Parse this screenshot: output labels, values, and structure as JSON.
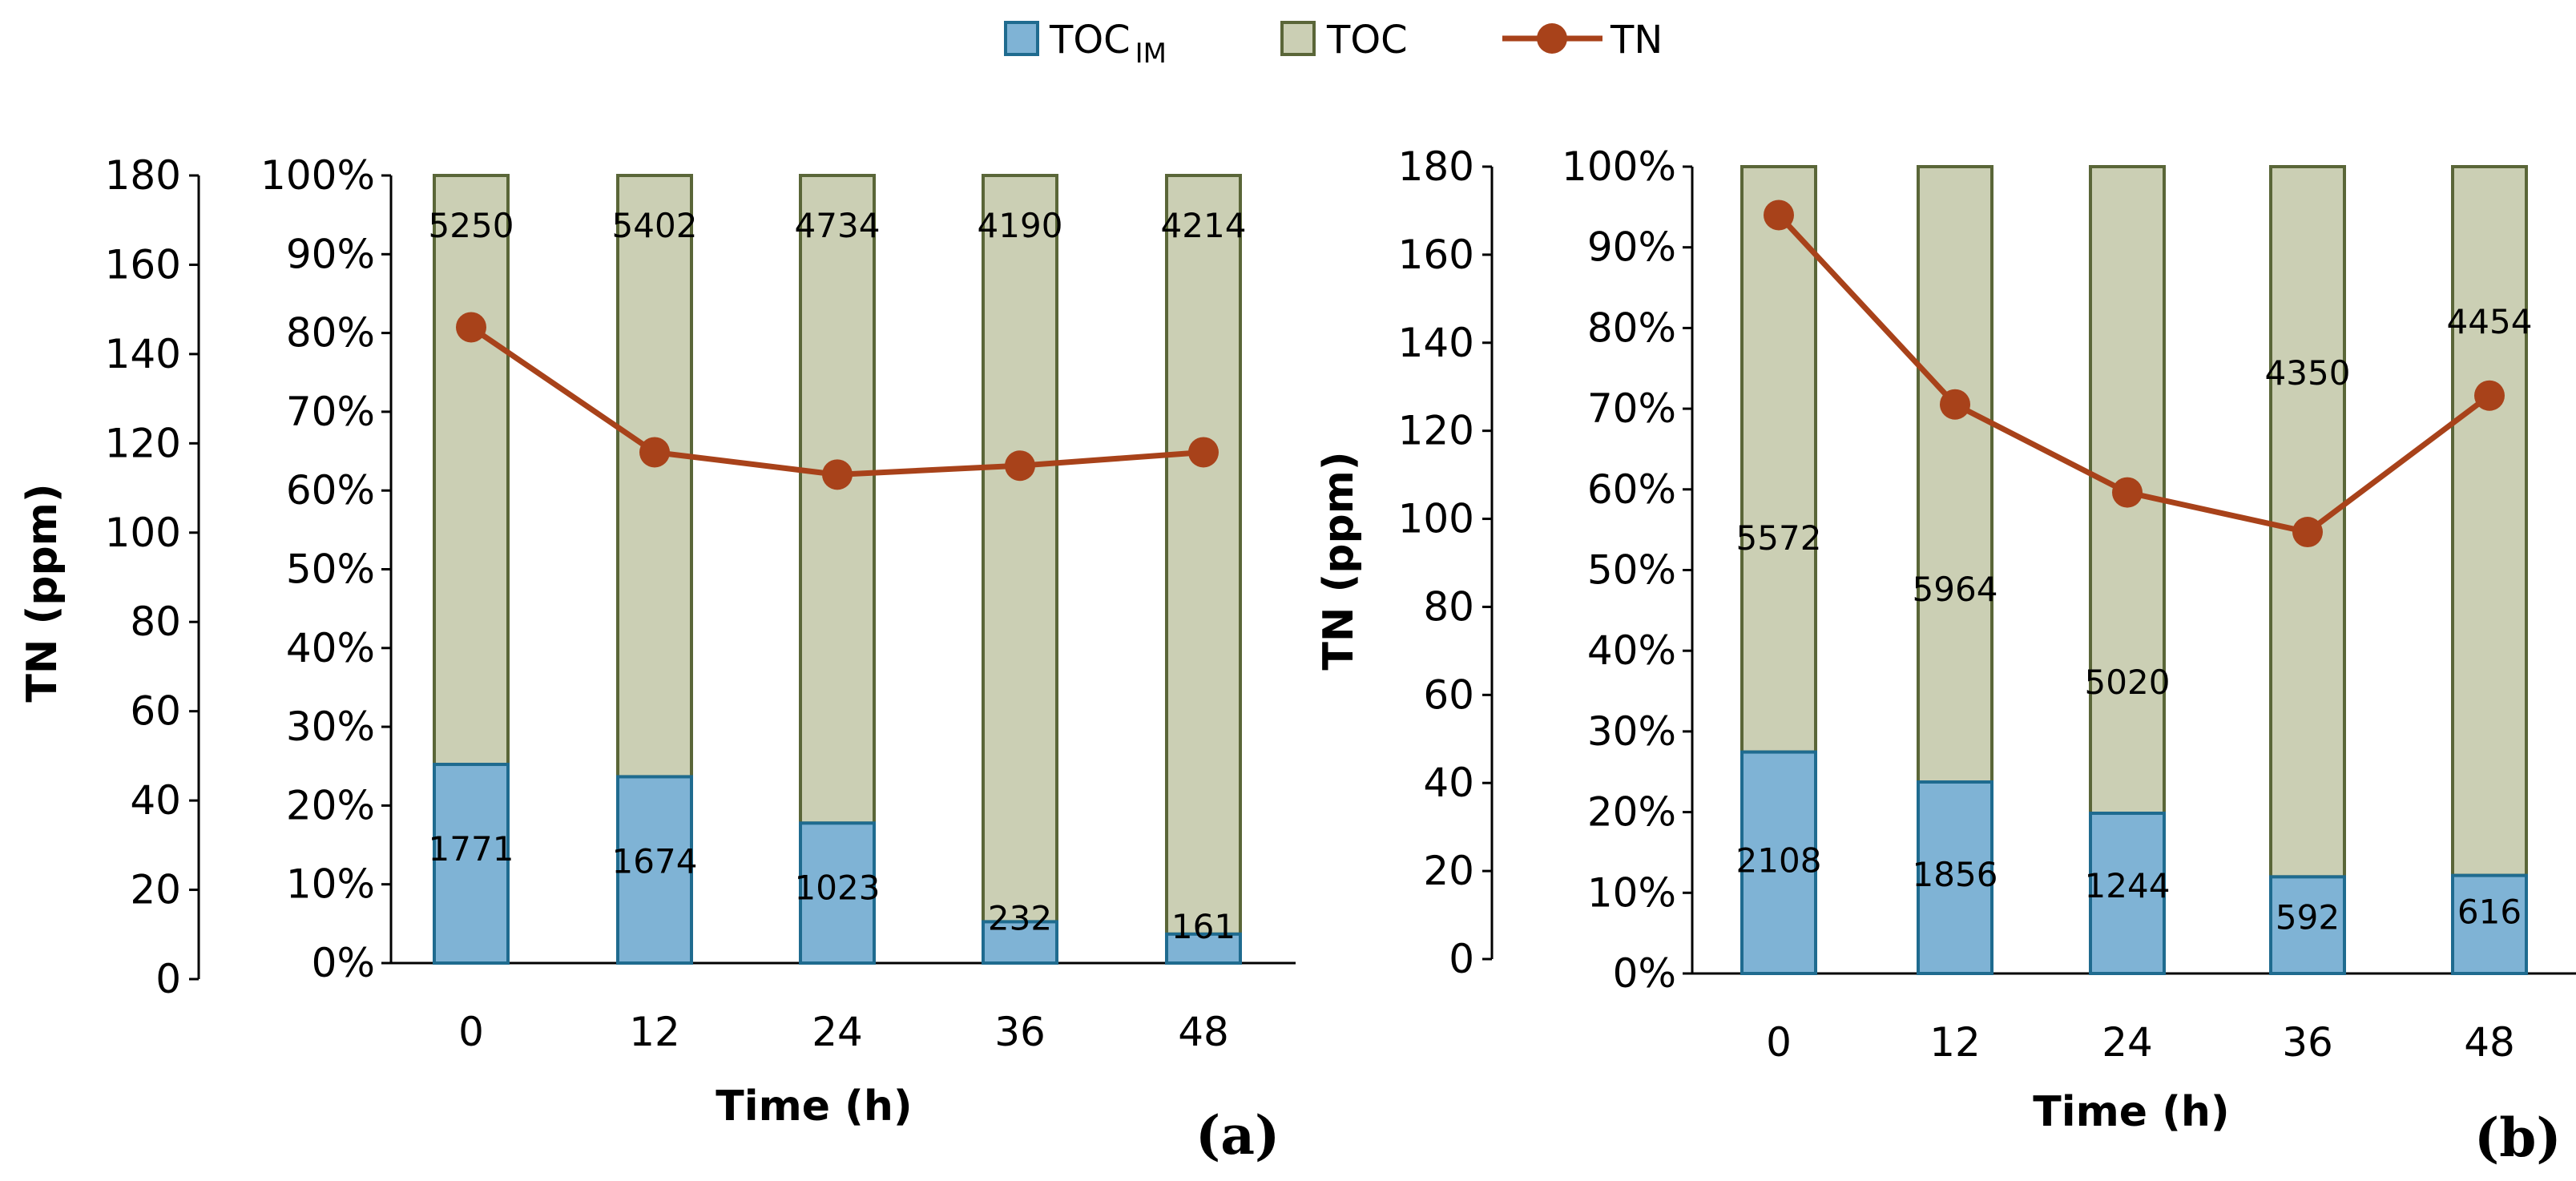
{
  "legend": {
    "toc_im": {
      "label": "TOC",
      "subscript": "IM"
    },
    "toc": {
      "label": "TOC"
    },
    "tn": {
      "label": "TN"
    }
  },
  "colors": {
    "toc_im_fill": "#7fb3d5",
    "toc_im_stroke": "#1f6b8f",
    "toc_fill": "#cbcfb4",
    "toc_stroke": "#5a6638",
    "tn_line": "#a8421a",
    "axis": "#000000"
  },
  "chart_data": [
    {
      "type": "bar",
      "panel_label": "(a)",
      "stacked": "percent",
      "categories": [
        "0",
        "12",
        "24",
        "36",
        "48"
      ],
      "series": [
        {
          "name": "TOC IM",
          "values": [
            1771,
            1674,
            1023,
            232,
            161
          ]
        },
        {
          "name": "TOC",
          "values": [
            5250,
            5402,
            4734,
            4190,
            4214
          ]
        },
        {
          "name": "TN",
          "type": "line",
          "axis": "left",
          "values": [
            146,
            118,
            113,
            115,
            118
          ]
        }
      ],
      "data_labels": {
        "toc_im": [
          "1771",
          "1674",
          "1023",
          "232",
          "161"
        ],
        "toc": [
          "5250",
          "5402",
          "4734",
          "4190",
          "4214"
        ]
      },
      "xlabel": "Time (h)",
      "ylabel_left": "TN (ppm)",
      "ylim_left": [
        0,
        180
      ],
      "yticks_left": [
        "0",
        "20",
        "40",
        "60",
        "80",
        "100",
        "120",
        "140",
        "160",
        "180"
      ],
      "ylim_right": [
        0,
        100
      ],
      "yticks_right": [
        "0%",
        "10%",
        "20%",
        "30%",
        "40%",
        "50%",
        "60%",
        "70%",
        "80%",
        "90%",
        "100%"
      ]
    },
    {
      "type": "bar",
      "panel_label": "(b)",
      "stacked": "percent",
      "categories": [
        "0",
        "12",
        "24",
        "36",
        "48"
      ],
      "series": [
        {
          "name": "TOC IM",
          "values": [
            2108,
            1856,
            1244,
            592,
            616
          ]
        },
        {
          "name": "TOC",
          "values": [
            5572,
            5964,
            5020,
            4350,
            4454
          ]
        },
        {
          "name": "TN",
          "type": "line",
          "axis": "left",
          "values": [
            169,
            126,
            106,
            97,
            128
          ]
        }
      ],
      "data_labels": {
        "toc_im": [
          "2108",
          "1856",
          "1244",
          "592",
          "616"
        ],
        "toc": [
          "5572",
          "5964",
          "5020",
          "4350",
          "4454"
        ]
      },
      "xlabel": "Time (h)",
      "ylabel_left": "TN (ppm)",
      "ylim_left": [
        0,
        180
      ],
      "yticks_left": [
        "0",
        "20",
        "40",
        "60",
        "80",
        "100",
        "120",
        "140",
        "160",
        "180"
      ],
      "ylim_right": [
        0,
        100
      ],
      "yticks_right": [
        "0%",
        "10%",
        "20%",
        "30%",
        "40%",
        "50%",
        "60%",
        "70%",
        "80%",
        "90%",
        "100%"
      ]
    }
  ]
}
